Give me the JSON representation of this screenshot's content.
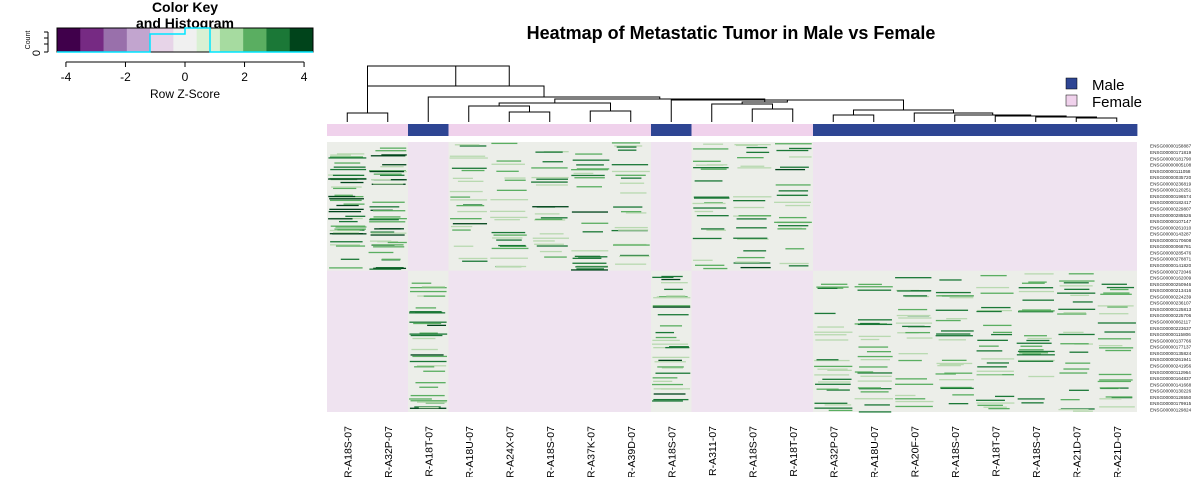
{
  "chart_data": {
    "type": "heatmap",
    "title": "Heatmap of Metastatic Tumor in Male vs Female",
    "color_key": {
      "title_line1": "Color Key",
      "title_line2": "and Histogram",
      "xlabel": "Row Z-Score",
      "ylabel": "Count",
      "y_tick": "0",
      "x_ticks": [
        "-4",
        "-2",
        "0",
        "2",
        "4"
      ],
      "x_range": [
        -4.3,
        4.3
      ],
      "colors": [
        "#40004b",
        "#762a83",
        "#9970ab",
        "#c2a5cf",
        "#e7d4e8",
        "#f0f0f0",
        "#d9f0d3",
        "#a6dba0",
        "#5aae61",
        "#1b7837",
        "#00441b"
      ]
    },
    "legend": {
      "position": "top-right",
      "entries": [
        {
          "label": "Male",
          "color": "#2e4593"
        },
        {
          "label": "Female",
          "color": "#f0d2ec"
        }
      ]
    },
    "columns": [
      {
        "label": "R-A18S-07",
        "group": "Female"
      },
      {
        "label": "R-A32P-07",
        "group": "Female"
      },
      {
        "label": "R-A18T-07",
        "group": "Male"
      },
      {
        "label": "R-A18U-07",
        "group": "Female"
      },
      {
        "label": "R-A24X-07",
        "group": "Female"
      },
      {
        "label": "R-A18S-07",
        "group": "Female"
      },
      {
        "label": "R-A37K-07",
        "group": "Female"
      },
      {
        "label": "R-A39D-07",
        "group": "Female"
      },
      {
        "label": "R-A18S-07",
        "group": "Male"
      },
      {
        "label": "R-A311-07",
        "group": "Female"
      },
      {
        "label": "R-A18S-07",
        "group": "Female"
      },
      {
        "label": "R-A18T-07",
        "group": "Female"
      },
      {
        "label": "R-A32P-07",
        "group": "Male"
      },
      {
        "label": "R-A18U-07",
        "group": "Male"
      },
      {
        "label": "R-A20F-07",
        "group": "Male"
      },
      {
        "label": "R-A18S-07",
        "group": "Male"
      },
      {
        "label": "R-A18T-07",
        "group": "Male"
      },
      {
        "label": "R-A18S-07",
        "group": "Male"
      },
      {
        "label": "R-A21D-07",
        "group": "Male"
      },
      {
        "label": "R-A21D-07",
        "group": "Male"
      }
    ],
    "rows": [
      "ENSG00000158887",
      "ENSG00000171819",
      "ENSG00000181790",
      "ENSG00000005108",
      "ENSG00000111058",
      "ENSG00000035720",
      "ENSG00000236819",
      "ENSG00000120251",
      "ENSG00000196574",
      "ENSG00000182417",
      "ENSG00000229807",
      "ENSG00000285526",
      "ENSG00000107147",
      "ENSG00000261010",
      "ENSG00000143287",
      "ENSG00000170608",
      "ENSG00000068781",
      "ENSG00000285476",
      "ENSG00000278871",
      "ENSG00000141820",
      "ENSG00000272046",
      "ENSG00000162009",
      "ENSG00000250946",
      "ENSG00000213416",
      "ENSG00000224239",
      "ENSG00000236107",
      "ENSG00000125813",
      "ENSG00000225706",
      "ENSG00000062117",
      "ENSG00000223637",
      "ENSG00000115806",
      "ENSG00000137766",
      "ENSG00000177137",
      "ENSG00000135824",
      "ENSG00000261941",
      "ENSG00000241956",
      "ENSG00000112964",
      "ENSG00000164837",
      "ENSG00000141668",
      "ENSG00000130226",
      "ENSG00000126550",
      "ENSG00000179915",
      "ENSG00000129824"
    ],
    "row_clusters": [
      {
        "columns": [
          0,
          1
        ],
        "density": 0.6,
        "level": 0.95
      },
      {
        "columns": [
          3,
          4,
          5,
          6,
          7,
          9,
          10,
          11
        ],
        "density": 0.3,
        "level": 0.8
      }
    ],
    "row_clusters_lower": [
      {
        "columns": [
          2,
          8
        ],
        "density": 0.45,
        "level": 0.9
      },
      {
        "columns": [
          12,
          13,
          14,
          15,
          16,
          17,
          18,
          19
        ],
        "density": 0.32,
        "level": 0.75
      }
    ]
  }
}
